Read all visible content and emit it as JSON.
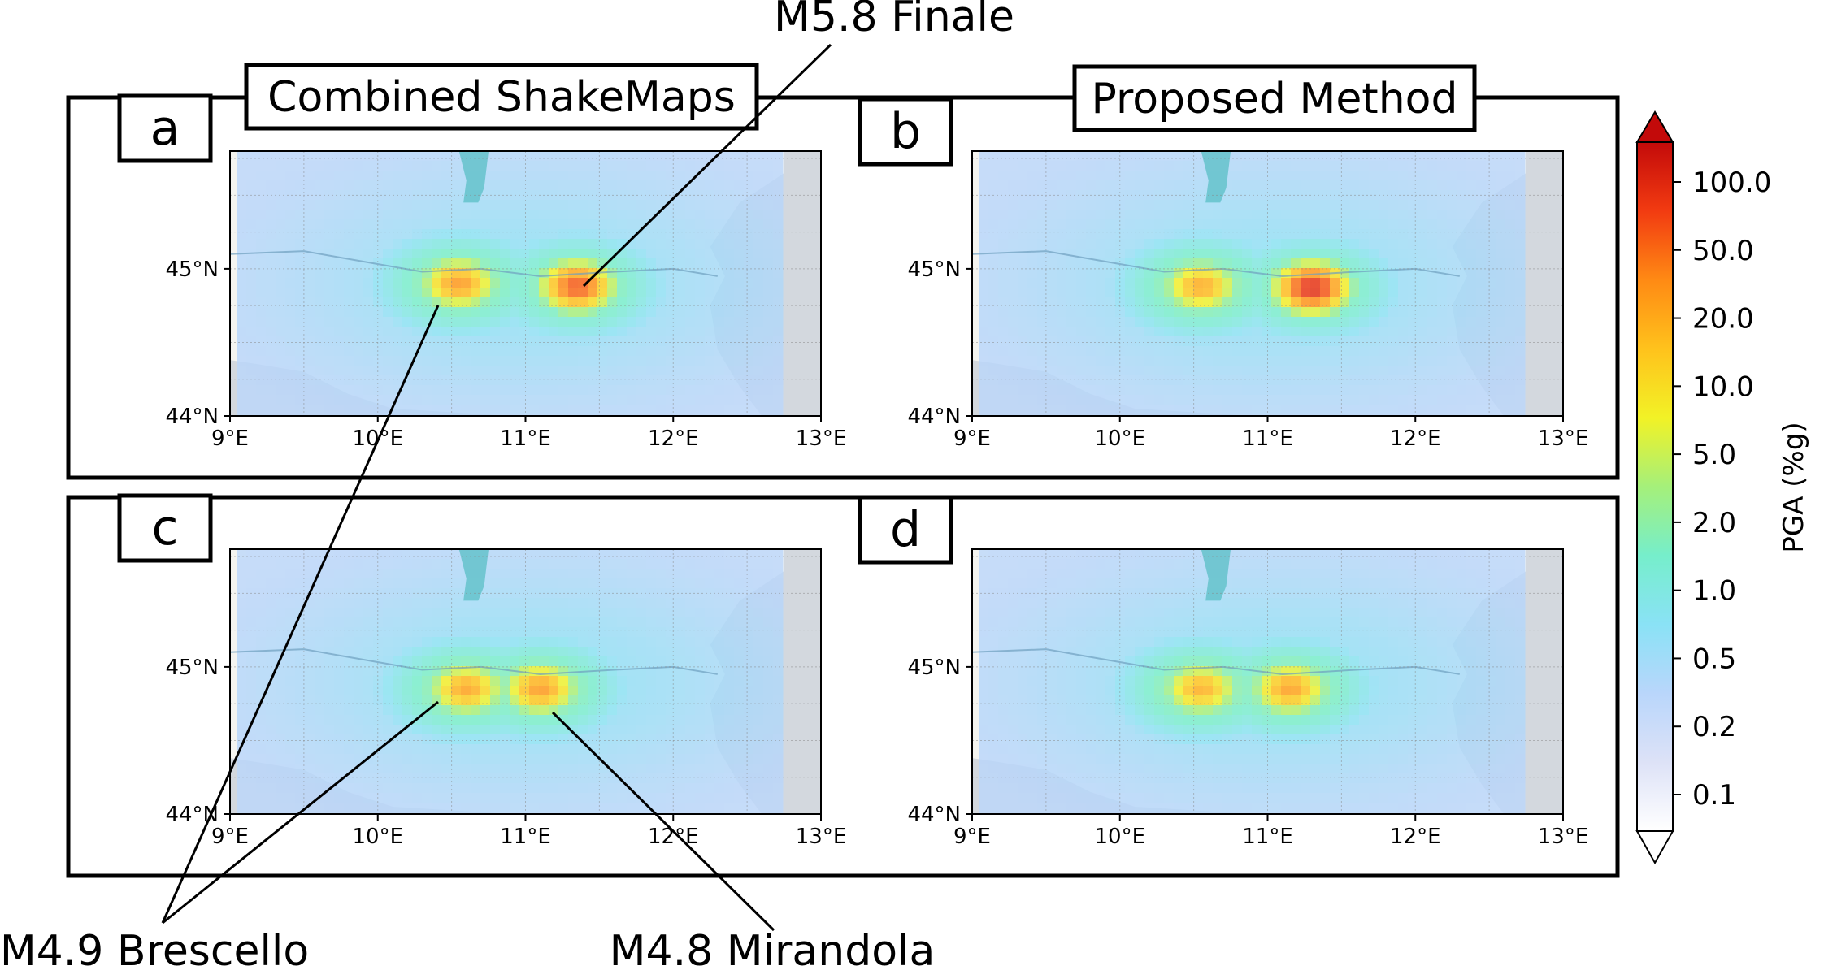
{
  "titles": {
    "left": "Combined ShakeMaps",
    "right": "Proposed Method"
  },
  "panel_labels": [
    "a",
    "b",
    "c",
    "d"
  ],
  "annotations": {
    "finale": "M5.8 Finale",
    "brescello": "M4.9 Brescello",
    "mirandola": "M4.8 Mirandola"
  },
  "map_axes": {
    "lon_ticks": [
      "9°E",
      "10°E",
      "11°E",
      "12°E",
      "13°E"
    ],
    "lat_ticks": [
      "45°N",
      "44°N"
    ],
    "lon_range": [
      9,
      13
    ],
    "lat_range": [
      44,
      45.8
    ]
  },
  "colorbar": {
    "label": "PGA (%g)",
    "ticks": [
      "100.0",
      "50.0",
      "20.0",
      "10.0",
      "5.0",
      "2.0",
      "1.0",
      "0.5",
      "0.2",
      "0.1"
    ],
    "colormap": "jet",
    "extend": "both"
  },
  "colors": {
    "land": "#f4f4f0",
    "sea": "#d3d8de",
    "frame": "#000000"
  },
  "events": [
    {
      "name": "M5.8 Finale",
      "lon": 11.4,
      "lat": 44.9
    },
    {
      "name": "M4.9 Brescello",
      "lon": 10.4,
      "lat": 44.8
    },
    {
      "name": "M4.8 Mirandola",
      "lon": 11.15,
      "lat": 44.8
    }
  ],
  "panels": [
    {
      "label": "a",
      "sources": [
        {
          "lon": 10.55,
          "lat": 44.9,
          "peak": 0.78
        },
        {
          "lon": 11.35,
          "lat": 44.88,
          "peak": 0.88
        }
      ]
    },
    {
      "label": "b",
      "sources": [
        {
          "lon": 10.55,
          "lat": 44.88,
          "peak": 0.75
        },
        {
          "lon": 11.3,
          "lat": 44.87,
          "peak": 0.95
        }
      ]
    },
    {
      "label": "c",
      "sources": [
        {
          "lon": 10.6,
          "lat": 44.85,
          "peak": 0.76
        },
        {
          "lon": 11.1,
          "lat": 44.85,
          "peak": 0.78
        }
      ]
    },
    {
      "label": "d",
      "sources": [
        {
          "lon": 10.55,
          "lat": 44.85,
          "peak": 0.74
        },
        {
          "lon": 11.15,
          "lat": 44.85,
          "peak": 0.77
        }
      ]
    }
  ]
}
